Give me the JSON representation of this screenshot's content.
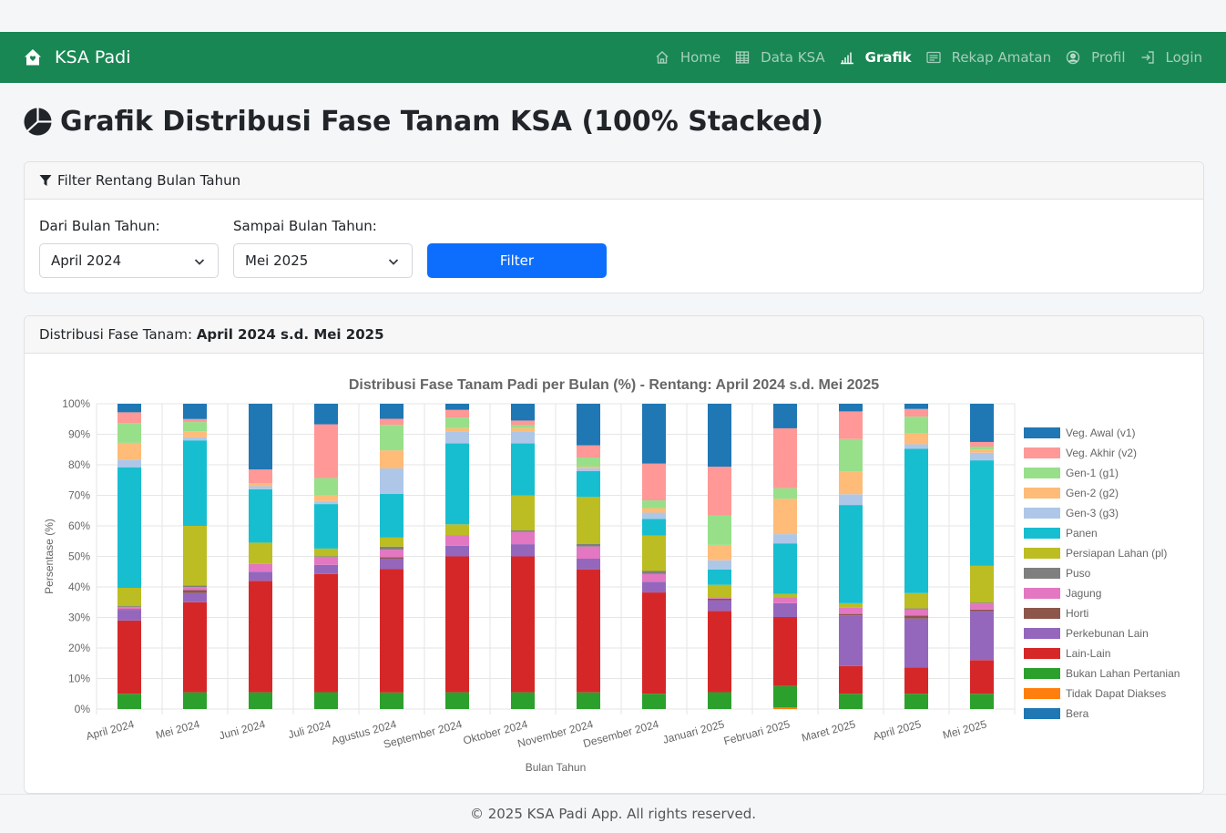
{
  "navbar": {
    "brand": "KSA Padi",
    "items": [
      {
        "label": "Home",
        "icon": "home-icon",
        "active": false
      },
      {
        "label": "Data KSA",
        "icon": "table-icon",
        "active": false
      },
      {
        "label": "Grafik",
        "icon": "bar-chart-icon",
        "active": true
      },
      {
        "label": "Rekap Amatan",
        "icon": "list-icon",
        "active": false
      },
      {
        "label": "Profil",
        "icon": "user-circle-icon",
        "active": false
      },
      {
        "label": "Login",
        "icon": "login-icon",
        "active": false
      }
    ]
  },
  "page": {
    "title": "Grafik Distribusi Fase Tanam KSA (100% Stacked)"
  },
  "filter": {
    "header": "Filter Rentang Bulan Tahun",
    "from_label": "Dari Bulan Tahun:",
    "from_value": "April 2024",
    "to_label": "Sampai Bulan Tahun:",
    "to_value": "Mei 2025",
    "button": "Filter"
  },
  "chart_card": {
    "header_prefix": "Distribusi Fase Tanam:",
    "header_range": "April 2024 s.d. Mei 2025"
  },
  "chart_data": {
    "type": "bar",
    "stacked": "100%",
    "title": "Distribusi Fase Tanam Padi per Bulan (%) - Rentang: April 2024 s.d. Mei 2025",
    "xlabel": "Bulan Tahun",
    "ylabel": "Persentase (%)",
    "ylim": [
      0,
      100
    ],
    "yticks": [
      "0%",
      "10%",
      "20%",
      "30%",
      "40%",
      "50%",
      "60%",
      "70%",
      "80%",
      "90%",
      "100%"
    ],
    "legend_position": "right",
    "categories": [
      "April 2024",
      "Mei 2024",
      "Juni 2024",
      "Juli 2024",
      "Agustus 2024",
      "September 2024",
      "Oktober 2024",
      "November 2024",
      "Desember 2024",
      "Januari 2025",
      "Februari 2025",
      "Maret 2025",
      "April 2025",
      "Mei 2025"
    ],
    "stack_order": [
      "Tidak Dapat Diakses",
      "Bukan Lahan Pertanian",
      "Lain-Lain",
      "Perkebunan Lain",
      "Horti",
      "Jagung",
      "Puso",
      "Persiapan Lahan (pl)",
      "Panen",
      "Gen-3 (g3)",
      "Gen-2 (g2)",
      "Gen-1 (g1)",
      "Veg. Akhir (v2)",
      "Veg. Awal (v1)",
      "Bera"
    ],
    "series": [
      {
        "name": "Veg. Awal (v1)",
        "color": "#1f77b4",
        "values": [
          0,
          0,
          0,
          0,
          0,
          0,
          0,
          0,
          0,
          0,
          0,
          0,
          0,
          0
        ]
      },
      {
        "name": "Veg. Akhir (v2)",
        "color": "#ff9896",
        "values": [
          3.5,
          1,
          4.5,
          17.5,
          2,
          2.5,
          1.5,
          4,
          12,
          16,
          19.5,
          9,
          2.5,
          1.5
        ]
      },
      {
        "name": "Gen-1 (g1)",
        "color": "#98df8a",
        "values": [
          6.5,
          3,
          0,
          5.5,
          8.5,
          3.5,
          1,
          3,
          2.5,
          9.5,
          3.5,
          10.5,
          5.5,
          1
        ]
      },
      {
        "name": "Gen-2 (g2)",
        "color": "#ffbb78",
        "values": [
          5.5,
          2,
          1,
          2,
          6,
          1,
          1,
          0.5,
          1.5,
          5,
          11.5,
          7.5,
          3.5,
          1
        ]
      },
      {
        "name": "Gen-3 (g3)",
        "color": "#aec7e8",
        "values": [
          2.5,
          1,
          1,
          1,
          8.5,
          4,
          4,
          1,
          2,
          3,
          3,
          3.5,
          1.5,
          2.5
        ]
      },
      {
        "name": "Panen",
        "color": "#17becf",
        "values": [
          39.5,
          28,
          17.5,
          14.5,
          14.5,
          26.5,
          17,
          8.5,
          5.5,
          5,
          16.5,
          32,
          47,
          34.5
        ]
      },
      {
        "name": "Persiapan Lahan (pl)",
        "color": "#bcbd22",
        "values": [
          6,
          19.5,
          7,
          2.5,
          3,
          3.5,
          11.5,
          15.5,
          11.5,
          4,
          1,
          1.5,
          5,
          12
        ]
      },
      {
        "name": "Puso",
        "color": "#7f7f7f",
        "values": [
          0.3,
          0.5,
          0,
          0.3,
          1,
          0,
          0.5,
          0.8,
          1,
          0,
          0,
          0,
          0.3,
          0.3
        ]
      },
      {
        "name": "Jagung",
        "color": "#e377c2",
        "values": [
          0.7,
          1,
          2.5,
          2.5,
          2.5,
          3.5,
          4,
          4,
          2.5,
          0.5,
          2,
          2,
          2,
          2
        ]
      },
      {
        "name": "Horti",
        "color": "#8c564b",
        "values": [
          0.2,
          1,
          0,
          0,
          0.5,
          0,
          0,
          0,
          0,
          0.5,
          0,
          0.5,
          1,
          0.5
        ]
      },
      {
        "name": "Perkebunan Lain",
        "color": "#9467bd",
        "values": [
          3.5,
          3,
          3,
          3,
          3.5,
          3.5,
          4,
          3.5,
          3.5,
          3.5,
          4.5,
          16.5,
          16,
          16
        ]
      },
      {
        "name": "Lain-Lain",
        "color": "#d62728",
        "values": [
          24,
          29.5,
          36.5,
          38.5,
          41,
          44.5,
          44.5,
          40.5,
          33,
          26.5,
          22.5,
          9,
          8.5,
          11
        ]
      },
      {
        "name": "Bukan Lahan Pertanian",
        "color": "#2ca02c",
        "values": [
          5,
          5.5,
          5.5,
          5.5,
          5.5,
          5.5,
          5.5,
          5.5,
          5,
          5.5,
          7,
          5,
          5,
          5
        ]
      },
      {
        "name": "Tidak Dapat Diakses",
        "color": "#ff7f0e",
        "values": [
          0,
          0,
          0,
          0,
          0,
          0,
          0,
          0,
          0,
          0,
          0.5,
          0,
          0,
          0
        ]
      },
      {
        "name": "Bera",
        "color": "#1f77b4",
        "values": [
          2.8,
          5,
          21.5,
          6.7,
          5,
          2,
          5.5,
          13.7,
          19.5,
          20.5,
          8,
          2.5,
          1.7,
          12.5
        ]
      }
    ]
  },
  "footer": {
    "text": "© 2025 KSA Padi App. All rights reserved."
  }
}
